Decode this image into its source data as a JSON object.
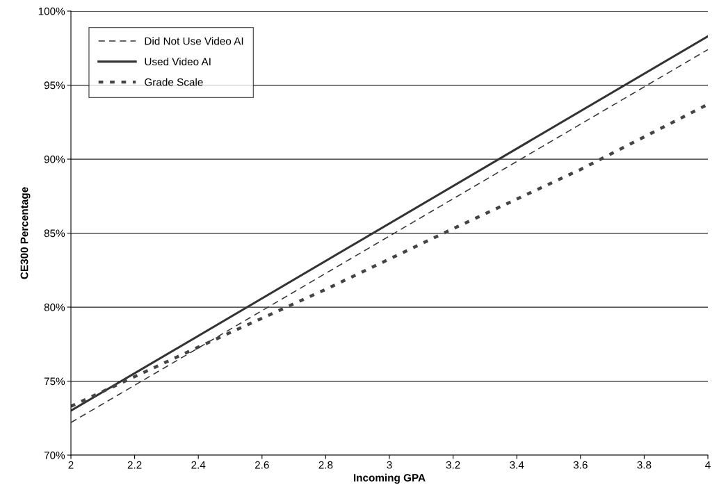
{
  "chart_data": {
    "type": "line",
    "xlabel": "Incoming GPA",
    "ylabel": "CE300 Percentage",
    "xlim": [
      2,
      4
    ],
    "xticks": [
      2,
      2.2,
      2.4,
      2.6,
      2.8,
      3,
      3.2,
      3.4,
      3.6,
      3.8,
      4
    ],
    "ylim": [
      70,
      100
    ],
    "yticks": [
      {
        "value": 70,
        "label": "70%"
      },
      {
        "value": 75,
        "label": "75%"
      },
      {
        "value": 80,
        "label": "80%"
      },
      {
        "value": 85,
        "label": "85%"
      },
      {
        "value": 90,
        "label": "90%"
      },
      {
        "value": 95,
        "label": "95%"
      },
      {
        "value": 100,
        "label": "100%"
      }
    ],
    "grid": "y",
    "legend": "top left",
    "marker": "none",
    "series": [
      {
        "name": "Did Not Use Video AI",
        "color": "#333333",
        "line_style": "dashed",
        "x": [
          2,
          4
        ],
        "values": [
          72.2,
          97.4
        ]
      },
      {
        "name": "Used Video AI",
        "color": "#333333",
        "line_style": "solid",
        "x": [
          2,
          4
        ],
        "values": [
          73.0,
          98.3
        ]
      },
      {
        "name": "Grade Scale",
        "color": "#444444",
        "line_style": "dotted",
        "x": [
          2,
          2.4,
          2.8,
          3.2,
          3.6,
          4
        ],
        "values": [
          73.3,
          77.3,
          81.2,
          85.3,
          89.3,
          93.7
        ]
      }
    ]
  }
}
